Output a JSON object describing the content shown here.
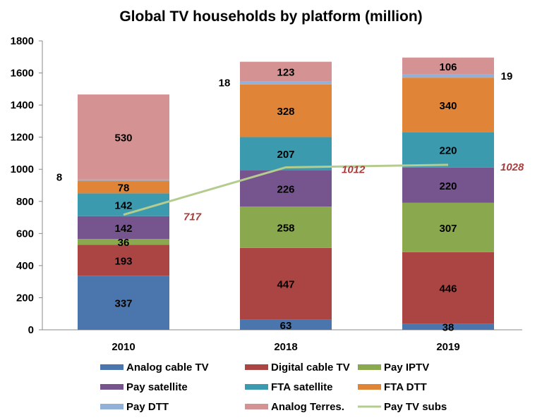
{
  "chart_data": {
    "type": "bar",
    "stacked": true,
    "title": "Global TV households by platform (million)",
    "categories": [
      "2010",
      "2018",
      "2019"
    ],
    "ylim": [
      0,
      1800
    ],
    "yticks": [
      0,
      200,
      400,
      600,
      800,
      1000,
      1200,
      1400,
      1600,
      1800
    ],
    "grid": false,
    "legend": "bottom",
    "series": [
      {
        "name": "Analog cable TV",
        "color": "#4a76ad",
        "values": [
          337,
          63,
          38
        ]
      },
      {
        "name": "Digital cable TV",
        "color": "#ab4543",
        "values": [
          193,
          447,
          446
        ]
      },
      {
        "name": "Pay IPTV",
        "color": "#8aa84d",
        "values": [
          36,
          258,
          307
        ]
      },
      {
        "name": "Pay satellite",
        "color": "#76558f",
        "values": [
          142,
          226,
          220
        ]
      },
      {
        "name": "FTA satellite",
        "color": "#3c9aaf",
        "values": [
          142,
          207,
          220
        ]
      },
      {
        "name": "FTA DTT",
        "color": "#e08538",
        "values": [
          78,
          328,
          340
        ]
      },
      {
        "name": "Pay DTT",
        "color": "#93b0d8",
        "values": [
          8,
          18,
          19
        ]
      },
      {
        "name": "Analog Terres.",
        "color": "#d49392",
        "values": [
          530,
          123,
          106
        ]
      }
    ],
    "line": {
      "name": "Pay TV subs",
      "color": "#b5cc8f",
      "values": [
        717,
        1012,
        1028
      ]
    }
  }
}
